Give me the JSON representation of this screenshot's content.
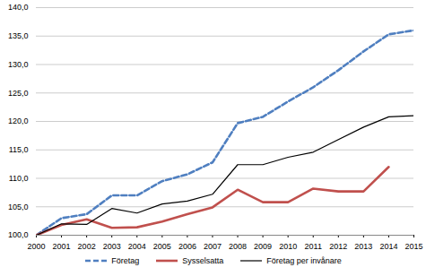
{
  "chart_data": {
    "type": "line",
    "x": [
      2000,
      2001,
      2002,
      2003,
      2004,
      2005,
      2006,
      2007,
      2008,
      2009,
      2010,
      2011,
      2012,
      2013,
      2014,
      2015
    ],
    "xlim": [
      2000,
      2015
    ],
    "xticks": [
      2000,
      2001,
      2002,
      2003,
      2004,
      2005,
      2006,
      2007,
      2008,
      2009,
      2010,
      2011,
      2012,
      2013,
      2014,
      2015
    ],
    "ylim": [
      100,
      140
    ],
    "yticks": [
      {
        "value": 100,
        "label": "100,0"
      },
      {
        "value": 105,
        "label": "105,0"
      },
      {
        "value": 110,
        "label": "110,0"
      },
      {
        "value": 115,
        "label": "115,0"
      },
      {
        "value": 120,
        "label": "120,0"
      },
      {
        "value": 125,
        "label": "125,0"
      },
      {
        "value": 130,
        "label": "130,0"
      },
      {
        "value": 135,
        "label": "135,0"
      },
      {
        "value": 140,
        "label": "140,0"
      }
    ],
    "grid": true,
    "legend": "bottom",
    "series": [
      {
        "name": "Företag",
        "color": "#4f7fc0",
        "line_style": "dashed",
        "values": [
          100,
          103,
          103.7,
          107,
          107,
          109.5,
          110.7,
          112.8,
          119.7,
          120.8,
          123.5,
          126,
          129,
          132.3,
          135.3,
          136
        ]
      },
      {
        "name": "Sysselsatta",
        "color": "#c0504d",
        "line_style": "solid",
        "values": [
          100,
          101.8,
          102.8,
          101.3,
          101.4,
          102.4,
          103.7,
          104.9,
          108,
          105.8,
          105.8,
          108.2,
          107.7,
          107.7,
          112,
          null
        ]
      },
      {
        "name": "Företag per invånare",
        "color": "#000000",
        "line_style": "solid",
        "values": [
          100,
          102,
          101.9,
          104.7,
          103.9,
          105.5,
          106,
          107.2,
          112.4,
          112.4,
          113.7,
          114.6,
          116.8,
          119,
          120.8,
          121
        ]
      }
    ]
  }
}
